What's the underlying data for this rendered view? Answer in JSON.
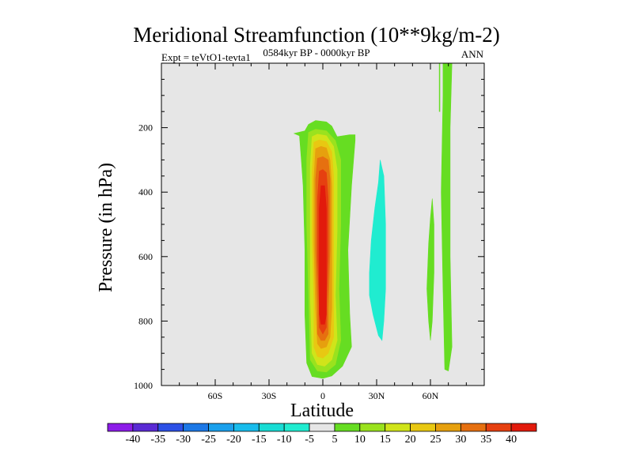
{
  "chart_data": {
    "type": "contour",
    "title": "Meridional Streamfunction (10**9kg/m-2)",
    "subtitle_left": "Expt = teVtO1-tevta1",
    "subtitle_center": "0584kyr BP - 0000kyr BP",
    "subtitle_right": "ANN",
    "xlabel": "Latitude",
    "ylabel": "Pressure (in hPa)",
    "xlim": [
      -90,
      90
    ],
    "ylim": [
      1000,
      0
    ],
    "x_ticks": [
      {
        "value": -60,
        "label": "60S"
      },
      {
        "value": -30,
        "label": "30S"
      },
      {
        "value": 0,
        "label": "0"
      },
      {
        "value": 30,
        "label": "30N"
      },
      {
        "value": 60,
        "label": "60N"
      }
    ],
    "y_ticks": [
      {
        "value": 200,
        "label": "200"
      },
      {
        "value": 400,
        "label": "400"
      },
      {
        "value": 600,
        "label": "600"
      },
      {
        "value": 800,
        "label": "800"
      },
      {
        "value": 1000,
        "label": "1000"
      }
    ],
    "colorbar": {
      "levels": [
        -40,
        -35,
        -30,
        -25,
        -20,
        -15,
        -10,
        -5,
        5,
        10,
        15,
        20,
        25,
        30,
        35,
        40
      ],
      "labels": [
        "-40",
        "-35",
        "-30",
        "-25",
        "-20",
        "-15",
        "-10",
        "-5",
        "5",
        "10",
        "15",
        "20",
        "25",
        "30",
        "35",
        "40"
      ],
      "colors": [
        "#8c1ce8",
        "#5a2ad4",
        "#2c50e6",
        "#1c78e6",
        "#1aa0ec",
        "#18bcec",
        "#18dcd4",
        "#20ecd0",
        "#e6e6e6",
        "#66dd22",
        "#9ae21e",
        "#d0e41a",
        "#e8c812",
        "#e6a00e",
        "#e67010",
        "#e64010",
        "#e21a0c"
      ],
      "colors_note": "first = below -40, last = above 40, middle grey = -5..5"
    },
    "background_color": "#e6e6e6",
    "features": [
      {
        "name": "main-positive-cell",
        "levels": [
          {
            "value": 5,
            "color": "#66dd22",
            "outline": [
              [
                -13,
                225
              ],
              [
                -16,
                218
              ],
              [
                -10,
                210
              ],
              [
                -8,
                190
              ],
              [
                -4,
                178
              ],
              [
                2,
                182
              ],
              [
                5,
                195
              ],
              [
                8,
                228
              ],
              [
                15,
                222
              ],
              [
                18,
                222
              ],
              [
                18,
                240
              ],
              [
                16,
                380
              ],
              [
                14,
                580
              ],
              [
                15,
                780
              ],
              [
                16,
                880
              ],
              [
                11,
                940
              ],
              [
                5,
                970
              ],
              [
                0,
                978
              ],
              [
                -6,
                972
              ],
              [
                -9,
                930
              ],
              [
                -10,
                780
              ],
              [
                -10,
                580
              ],
              [
                -11,
                380
              ],
              [
                -12,
                300
              ]
            ]
          },
          {
            "value": 10,
            "color": "#9ae21e",
            "outline": [
              [
                -8,
                215
              ],
              [
                -4,
                205
              ],
              [
                2,
                210
              ],
              [
                7,
                240
              ],
              [
                10,
                300
              ],
              [
                10,
                500
              ],
              [
                9,
                700
              ],
              [
                10,
                860
              ],
              [
                7,
                935
              ],
              [
                2,
                958
              ],
              [
                -3,
                955
              ],
              [
                -7,
                920
              ],
              [
                -8,
                700
              ],
              [
                -9,
                500
              ],
              [
                -9,
                300
              ]
            ]
          },
          {
            "value": 15,
            "color": "#d0e41a",
            "outline": [
              [
                -6,
                228
              ],
              [
                -3,
                220
              ],
              [
                2,
                225
              ],
              [
                6,
                258
              ],
              [
                8,
                330
              ],
              [
                8,
                520
              ],
              [
                7,
                720
              ],
              [
                8,
                860
              ],
              [
                5,
                920
              ],
              [
                1,
                940
              ],
              [
                -3,
                935
              ],
              [
                -6,
                900
              ],
              [
                -7,
                720
              ],
              [
                -7,
                520
              ],
              [
                -7,
                320
              ]
            ]
          },
          {
            "value": 20,
            "color": "#e8c812",
            "outline": [
              [
                -5,
                245
              ],
              [
                -2,
                238
              ],
              [
                2,
                243
              ],
              [
                5,
                275
              ],
              [
                6,
                350
              ],
              [
                6,
                540
              ],
              [
                6,
                740
              ],
              [
                6,
                850
              ],
              [
                3,
                900
              ],
              [
                0,
                915
              ],
              [
                -3,
                910
              ],
              [
                -5,
                880
              ],
              [
                -5,
                740
              ],
              [
                -6,
                540
              ],
              [
                -6,
                340
              ]
            ]
          },
          {
            "value": 25,
            "color": "#e6a00e",
            "outline": [
              [
                -4,
                265
              ],
              [
                -1,
                258
              ],
              [
                2,
                263
              ],
              [
                4,
                300
              ],
              [
                5,
                380
              ],
              [
                5,
                560
              ],
              [
                5,
                760
              ],
              [
                4,
                850
              ],
              [
                2,
                880
              ],
              [
                -1,
                885
              ],
              [
                -3,
                870
              ],
              [
                -4,
                760
              ],
              [
                -5,
                560
              ],
              [
                -5,
                360
              ]
            ]
          },
          {
            "value": 30,
            "color": "#e67010",
            "outline": [
              [
                -3,
                295
              ],
              [
                0,
                290
              ],
              [
                3,
                300
              ],
              [
                4,
                360
              ],
              [
                4,
                580
              ],
              [
                3,
                760
              ],
              [
                3,
                840
              ],
              [
                1,
                860
              ],
              [
                -1,
                860
              ],
              [
                -3,
                840
              ],
              [
                -3,
                760
              ],
              [
                -4,
                580
              ],
              [
                -4,
                360
              ]
            ]
          },
          {
            "value": 35,
            "color": "#e64010",
            "outline": [
              [
                -2,
                335
              ],
              [
                0,
                330
              ],
              [
                2,
                340
              ],
              [
                3,
                420
              ],
              [
                3,
                600
              ],
              [
                2,
                760
              ],
              [
                2,
                820
              ],
              [
                0,
                840
              ],
              [
                -2,
                820
              ],
              [
                -2,
                760
              ],
              [
                -3,
                600
              ],
              [
                -3,
                420
              ]
            ]
          },
          {
            "value": 40,
            "color": "#e21a0c",
            "outline": [
              [
                -1,
                380
              ],
              [
                1,
                380
              ],
              [
                2,
                450
              ],
              [
                2,
                640
              ],
              [
                2,
                780
              ],
              [
                1,
                810
              ],
              [
                -1,
                810
              ],
              [
                -2,
                780
              ],
              [
                -2,
                640
              ],
              [
                -2,
                450
              ]
            ]
          }
        ]
      },
      {
        "name": "negative-cell-30n",
        "levels": [
          {
            "value": -5,
            "color": "#20ecd0",
            "outline": [
              [
                32,
                300
              ],
              [
                34,
                350
              ],
              [
                35,
                500
              ],
              [
                35,
                700
              ],
              [
                34,
                800
              ],
              [
                33,
                860
              ],
              [
                31,
                845
              ],
              [
                28,
                780
              ],
              [
                26,
                720
              ],
              [
                26,
                650
              ],
              [
                27,
                550
              ],
              [
                29,
                450
              ],
              [
                31,
                370
              ]
            ]
          }
        ]
      },
      {
        "name": "positive-sliver-60n",
        "levels": [
          {
            "value": 5,
            "color": "#66dd22",
            "outline": [
              [
                61,
                420
              ],
              [
                62,
                500
              ],
              [
                62,
                650
              ],
              [
                61,
                800
              ],
              [
                60,
                860
              ],
              [
                59,
                800
              ],
              [
                58,
                700
              ],
              [
                59,
                560
              ],
              [
                60,
                480
              ]
            ]
          }
        ]
      },
      {
        "name": "positive-strip-70n",
        "levels": [
          {
            "value": 5,
            "color": "#66dd22",
            "outline": [
              [
                67,
                0
              ],
              [
                72,
                0
              ],
              [
                71,
                200
              ],
              [
                71,
                600
              ],
              [
                72,
                880
              ],
              [
                70,
                955
              ],
              [
                68,
                950
              ],
              [
                67,
                700
              ],
              [
                66,
                400
              ],
              [
                67,
                100
              ]
            ]
          }
        ]
      },
      {
        "name": "thin-line-65n",
        "levels": [
          {
            "value": 5,
            "color": "#66dd22",
            "outline": [
              [
                64.9,
                0
              ],
              [
                65.3,
                0
              ],
              [
                65.3,
                150
              ],
              [
                64.9,
                150
              ]
            ]
          }
        ]
      }
    ]
  }
}
